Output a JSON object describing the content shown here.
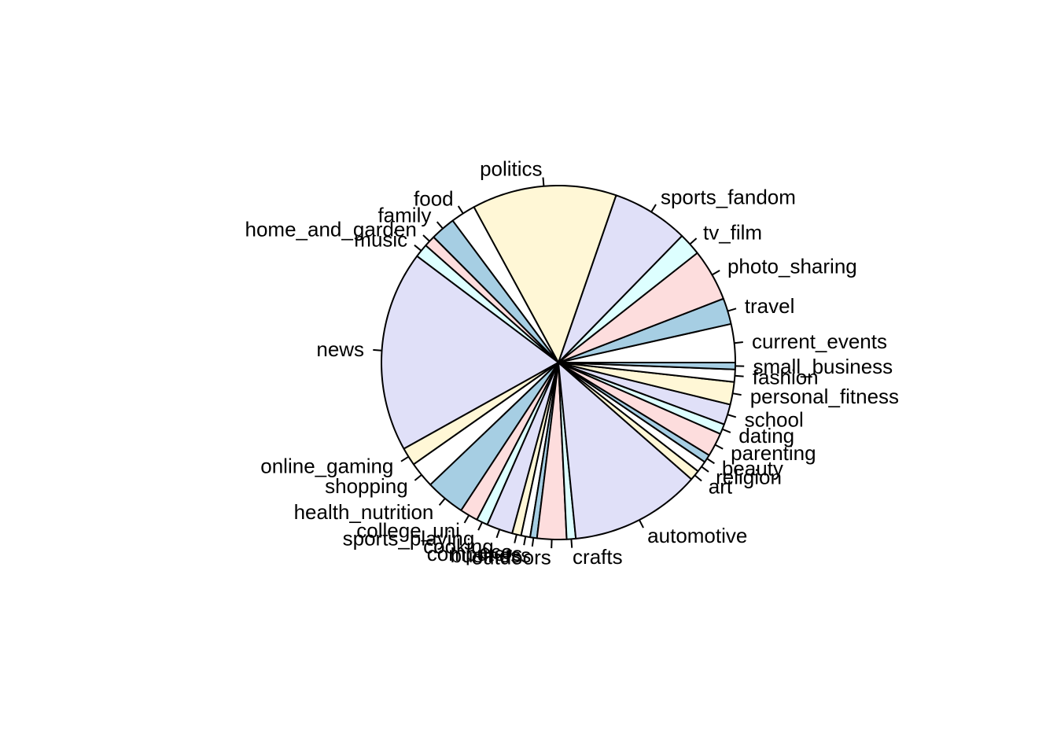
{
  "chart_data": {
    "type": "pie",
    "start_angle_deg": 0,
    "direction": "counterclockwise",
    "slice_colors": [
      "#FFFFFF",
      "#A6CEE3",
      "#FDDDDD",
      "#DDFFFF",
      "#E0E0F8",
      "#FFF7D6"
    ],
    "slices": [
      {
        "label": "current_events",
        "value": 3.4,
        "fill": "#FFFFFF"
      },
      {
        "label": "travel",
        "value": 2.3,
        "fill": "#A6CEE3"
      },
      {
        "label": "photo_sharing",
        "value": 4.6,
        "fill": "#FDDDDD"
      },
      {
        "label": "tv_film",
        "value": 2.0,
        "fill": "#DDFFFF"
      },
      {
        "label": "sports_fandom",
        "value": 6.8,
        "fill": "#E0E0F8"
      },
      {
        "label": "politics",
        "value": 12.8,
        "fill": "#FFF7D6"
      },
      {
        "label": "food",
        "value": 2.2,
        "fill": "#FFFFFF"
      },
      {
        "label": "family",
        "value": 2.2,
        "fill": "#A6CEE3"
      },
      {
        "label": "home_and_garden",
        "value": 1.0,
        "fill": "#FDDDDD"
      },
      {
        "label": "music",
        "value": 1.2,
        "fill": "#DDFFFF"
      },
      {
        "label": "news",
        "value": 17.8,
        "fill": "#E0E0F8"
      },
      {
        "label": "online_gaming",
        "value": 1.6,
        "fill": "#FFF7D6"
      },
      {
        "label": "shopping",
        "value": 2.3,
        "fill": "#FFFFFF"
      },
      {
        "label": "health_nutrition",
        "value": 3.5,
        "fill": "#A6CEE3"
      },
      {
        "label": "college_uni",
        "value": 1.6,
        "fill": "#FDDDDD"
      },
      {
        "label": "sports_playing",
        "value": 1.0,
        "fill": "#DDFFFF"
      },
      {
        "label": "cooking",
        "value": 2.3,
        "fill": "#E0E0F8"
      },
      {
        "label": "eco",
        "value": 0.8,
        "fill": "#FFF7D6"
      },
      {
        "label": "computers",
        "value": 0.8,
        "fill": "#FFFFFF"
      },
      {
        "label": "business",
        "value": 0.6,
        "fill": "#A6CEE3"
      },
      {
        "label": "outdoors",
        "value": 2.6,
        "fill": "#FDDDDD"
      },
      {
        "label": "crafts",
        "value": 0.8,
        "fill": "#DDFFFF"
      },
      {
        "label": "automotive",
        "value": 11.6,
        "fill": "#E0E0F8"
      },
      {
        "label": "art",
        "value": 0.9,
        "fill": "#FFF7D6"
      },
      {
        "label": "religion",
        "value": 1.0,
        "fill": "#FFFFFF"
      },
      {
        "label": "beauty",
        "value": 0.7,
        "fill": "#A6CEE3"
      },
      {
        "label": "parenting",
        "value": 2.1,
        "fill": "#FDDDDD"
      },
      {
        "label": "dating",
        "value": 0.9,
        "fill": "#DDFFFF"
      },
      {
        "label": "school",
        "value": 1.8,
        "fill": "#E0E0F8"
      },
      {
        "label": "personal_fitness",
        "value": 2.0,
        "fill": "#FFF7D6"
      },
      {
        "label": "fashion",
        "value": 1.1,
        "fill": "#FFFFFF"
      },
      {
        "label": "small_business",
        "value": 0.6,
        "fill": "#A6CEE3"
      }
    ]
  }
}
